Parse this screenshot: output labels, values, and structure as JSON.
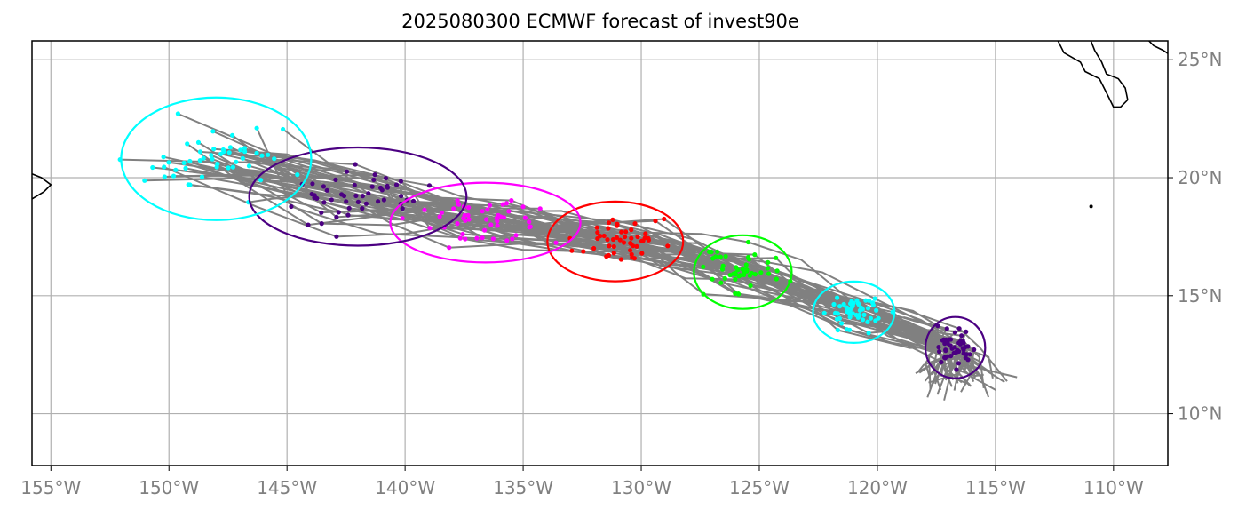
{
  "title": "2025080300 ECMWF forecast of invest90e",
  "colors": {
    "track": "#808080",
    "grid": "#b0b0b0",
    "coast": "#000000",
    "cyan": "#00ffff",
    "indigo": "#4b0082",
    "magenta": "#ff00ff",
    "red": "#ff0000",
    "green": "#00ff00"
  },
  "chart_data": {
    "type": "scatter",
    "projection": "PlateCarree",
    "xlim": [
      -155.8,
      -107.7
    ],
    "ylim": [
      7.8,
      25.8
    ],
    "grid": true,
    "x_ticks": [
      -155,
      -150,
      -145,
      -140,
      -135,
      -130,
      -125,
      -120,
      -115,
      -110
    ],
    "x_tick_labels": [
      "155°W",
      "150°W",
      "145°W",
      "140°W",
      "135°W",
      "130°W",
      "125°W",
      "120°W",
      "115°W",
      "110°W"
    ],
    "y_ticks": [
      10,
      15,
      20,
      25
    ],
    "y_tick_labels": [
      "10°N",
      "15°N",
      "20°N",
      "25°N"
    ],
    "ensemble_members": 50,
    "track_start": {
      "lon": -116.2,
      "lat": 11.4
    },
    "forecast_clusters": [
      {
        "color": "indigo",
        "center": [
          -116.7,
          12.8
        ],
        "lon_spread": 1.1,
        "lat_spread": 1.0
      },
      {
        "color": "cyan",
        "center": [
          -121.0,
          14.3
        ],
        "lon_spread": 1.5,
        "lat_spread": 1.0
      },
      {
        "color": "green",
        "center": [
          -125.7,
          16.0
        ],
        "lon_spread": 1.8,
        "lat_spread": 1.2
      },
      {
        "color": "red",
        "center": [
          -131.1,
          17.3
        ],
        "lon_spread": 2.5,
        "lat_spread": 1.3
      },
      {
        "color": "magenta",
        "center": [
          -136.6,
          18.1
        ],
        "lon_spread": 3.5,
        "lat_spread": 1.3
      },
      {
        "color": "indigo",
        "center": [
          -142.0,
          19.2
        ],
        "lon_spread": 4.0,
        "lat_spread": 1.6
      },
      {
        "color": "cyan",
        "center": [
          -148.0,
          20.8
        ],
        "lon_spread": 3.5,
        "lat_spread": 2.0
      }
    ]
  }
}
